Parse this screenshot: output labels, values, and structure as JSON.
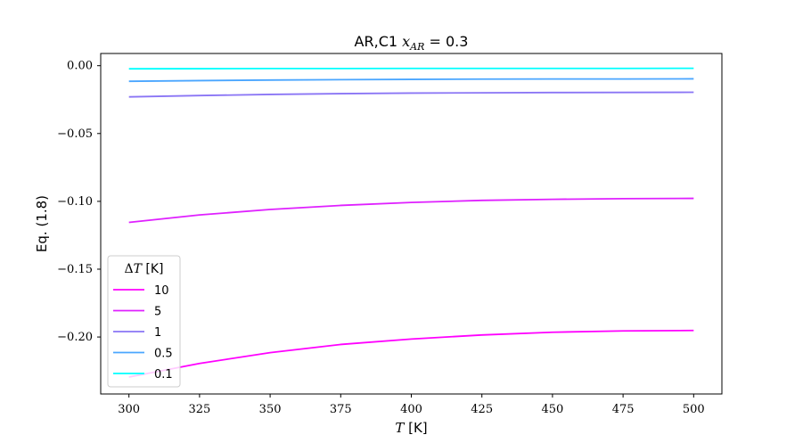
{
  "chart_data": {
    "type": "line",
    "title": "AR,C1 x_AR = 0.3",
    "xlabel": "T [K]",
    "ylabel": "Eq. (1.8)",
    "xlim": [
      290,
      510
    ],
    "ylim": [
      -0.242,
      0.009
    ],
    "xticks": [
      300,
      325,
      350,
      375,
      400,
      425,
      450,
      475,
      500
    ],
    "yticks": [
      0.0,
      -0.05,
      -0.1,
      -0.15,
      -0.2
    ],
    "ytick_labels": [
      "0.00",
      "−0.05",
      "−0.10",
      "−0.15",
      "−0.20"
    ],
    "grid": false,
    "legend": {
      "title": "ΔT [K]",
      "placement": "lower-left"
    },
    "series": [
      {
        "name": "10",
        "color": "#ff00ff",
        "x": [
          300,
          325,
          350,
          375,
          400,
          425,
          450,
          475,
          500
        ],
        "y": [
          -0.2295,
          -0.2195,
          -0.2115,
          -0.2055,
          -0.2015,
          -0.1985,
          -0.1965,
          -0.1955,
          -0.1952
        ]
      },
      {
        "name": "5",
        "color": "#df20ff",
        "x": [
          300,
          325,
          350,
          375,
          400,
          425,
          450,
          475,
          500
        ],
        "y": [
          -0.1155,
          -0.11,
          -0.106,
          -0.103,
          -0.1008,
          -0.0993,
          -0.0985,
          -0.098,
          -0.0978
        ]
      },
      {
        "name": "1",
        "color": "#8a75f5",
        "x": [
          300,
          325,
          350,
          375,
          400,
          425,
          450,
          475,
          500
        ],
        "y": [
          -0.023,
          -0.022,
          -0.0212,
          -0.0206,
          -0.0202,
          -0.02,
          -0.0198,
          -0.0197,
          -0.0196
        ]
      },
      {
        "name": "0.5",
        "color": "#4aa6ff",
        "x": [
          300,
          325,
          350,
          375,
          400,
          425,
          450,
          475,
          500
        ],
        "y": [
          -0.0115,
          -0.011,
          -0.0106,
          -0.0103,
          -0.0101,
          -0.0099,
          -0.0098,
          -0.0098,
          -0.0097
        ]
      },
      {
        "name": "0.1",
        "color": "#00ffff",
        "x": [
          300,
          325,
          350,
          375,
          400,
          425,
          450,
          475,
          500
        ],
        "y": [
          -0.0023,
          -0.0022,
          -0.0021,
          -0.0021,
          -0.002,
          -0.002,
          -0.002,
          -0.002,
          -0.0019
        ]
      }
    ]
  }
}
